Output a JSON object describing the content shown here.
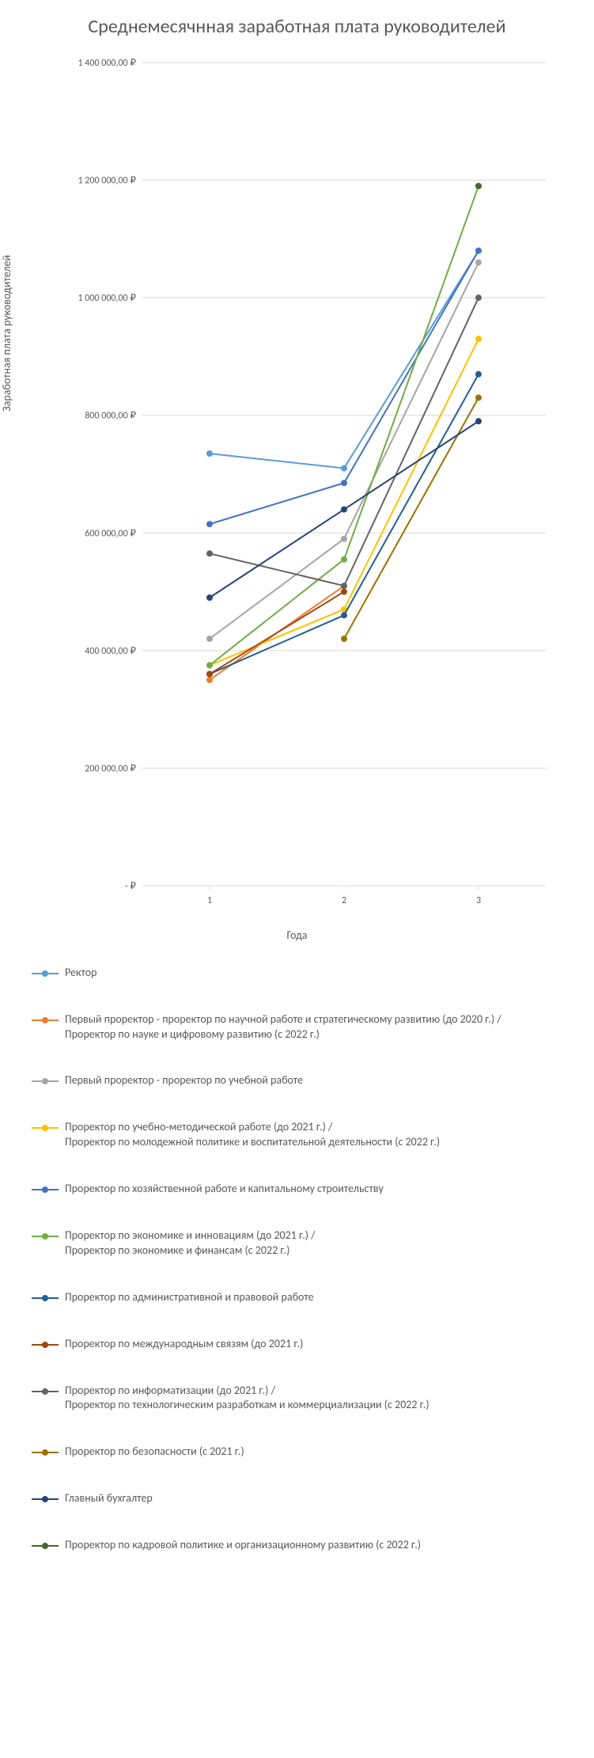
{
  "chart": {
    "type": "line",
    "title": "Среднемесячнная заработная плата руководителей",
    "ylabel": "Заработная плата руководителей",
    "xlabel": "Года",
    "title_fontsize": 24,
    "label_fontsize": 14,
    "tick_fontsize": 12,
    "background_color": "#ffffff",
    "grid_color": "#d9d9d9",
    "text_color": "#595959",
    "x_values": [
      "1",
      "2",
      "3"
    ],
    "ylim": [
      0,
      1400000
    ],
    "ytick_step": 200000,
    "ytick_labels": [
      "-   ₽",
      "200 000,00 ₽",
      "400 000,00 ₽",
      "600 000,00 ₽",
      "800 000,00 ₽",
      "1 000 000,00 ₽",
      "1 200 000,00 ₽",
      "1 400 000,00 ₽"
    ],
    "line_width": 2,
    "marker_radius": 4,
    "series": [
      {
        "name": "Ректор",
        "color": "#5b9bd5",
        "values": [
          735000,
          710000,
          1080000
        ]
      },
      {
        "name": "Первый проректор - проректор по научной работе и стратегическому развитию (до 2020 г.) /\nПроректор по науке и цифровому развитию (с 2022 г.)",
        "color": "#ed7d31",
        "values": [
          350000,
          510000,
          null
        ]
      },
      {
        "name": "Первый проректор - проректор по учебной работе",
        "color": "#a5a5a5",
        "values": [
          420000,
          590000,
          1060000
        ]
      },
      {
        "name": "Проректор по учебно-методической работе (до 2021 г.) /\nПроректор по молодежной политике и воспитательной деятельности (с 2022 г.)",
        "color": "#ffc000",
        "values": [
          375000,
          470000,
          930000
        ]
      },
      {
        "name": "Проректор по хозяйственной работе и капитальному строительству",
        "color": "#4472c4",
        "values": [
          615000,
          685000,
          1080000
        ]
      },
      {
        "name": "Проректор по экономике и инновациям (до 2021 г.) /\nПроректор по экономике и финансам (с 2022 г.)",
        "color": "#70ad47",
        "values": [
          375000,
          555000,
          1190000
        ]
      },
      {
        "name": "Проректор по административной и правовой работе",
        "color": "#255e91",
        "values": [
          360000,
          460000,
          870000
        ]
      },
      {
        "name": "Проректор по международным связям (до 2021 г.)",
        "color": "#9e480e",
        "values": [
          360000,
          500000,
          null
        ]
      },
      {
        "name": "Проректор по информатизации (до 2021 г.) /\nПроректор по технологическим разработкам и коммерциализации (с 2022 г.)",
        "color": "#636363",
        "values": [
          565000,
          510000,
          1000000
        ]
      },
      {
        "name": "Проректор по безопасности (с 2021 г.)",
        "color": "#997300",
        "values": [
          null,
          420000,
          830000
        ]
      },
      {
        "name": "Главный бухгалтер",
        "color": "#264478",
        "values": [
          490000,
          640000,
          790000
        ]
      },
      {
        "name": "Проректор по кадровой политике и организационному развитию (с 2022 г.)",
        "color": "#43682b",
        "values": [
          null,
          null,
          1190000
        ]
      }
    ]
  }
}
